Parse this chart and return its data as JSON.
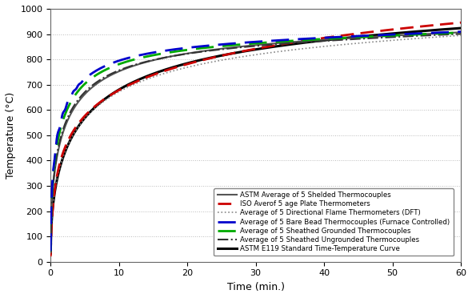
{
  "title": "",
  "xlabel": "Time (min.)",
  "ylabel": "Temperature (°C)",
  "xlim": [
    0,
    60
  ],
  "ylim": [
    0,
    1000
  ],
  "yticks": [
    0,
    100,
    200,
    300,
    400,
    500,
    600,
    700,
    800,
    900,
    1000
  ],
  "xticks": [
    0,
    10,
    20,
    30,
    40,
    50,
    60
  ],
  "legend": [
    {
      "label": "ASTM Average of 5 Shelded Thermocouples",
      "color": "#555555",
      "lw": 1.5,
      "ls": "-"
    },
    {
      "label": "ISO Averof 5 age Plate Thermometers",
      "color": "#cc0000",
      "lw": 2.0,
      "ls": "--"
    },
    {
      "label": "Average of 5 Directional Flame Thermometers (DFT)",
      "color": "#888888",
      "lw": 1.2,
      "ls": ":"
    },
    {
      "label": "Average of 5 Bare Bead Thermocouples (Furnace Controlled)",
      "color": "#0000cc",
      "lw": 2.0,
      "ls": "--"
    },
    {
      "label": "Average of 5 Sheathed Grounded Thermocouples",
      "color": "#00aa00",
      "lw": 2.0,
      "ls": "--"
    },
    {
      "label": "Average of 5 Sheathed Ungrounded Thermocouples",
      "color": "#333333",
      "lw": 1.5,
      "ls": "-."
    },
    {
      "label": "ASTM E119 Standard Time-Temperature Curve",
      "color": "#000000",
      "lw": 2.2,
      "ls": "-"
    }
  ],
  "background_color": "#ffffff",
  "grid_color": "#aaaaaa"
}
